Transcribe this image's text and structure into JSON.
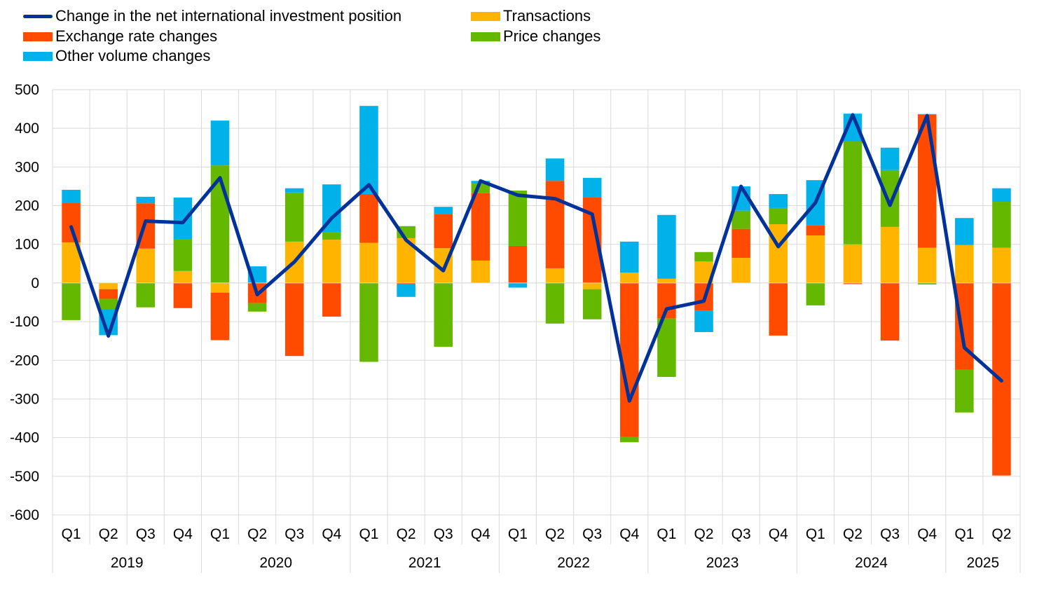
{
  "chart_data": {
    "type": "bar",
    "subtype": "stacked-bar-with-line",
    "title": "",
    "xlabel": "",
    "ylabel": "",
    "ylim": [
      -600,
      500
    ],
    "yticks": [
      500,
      400,
      300,
      200,
      100,
      0,
      -100,
      -200,
      -300,
      -400,
      -500,
      -600
    ],
    "grid": true,
    "legend_position": "top-left",
    "categories": [
      "Q1",
      "Q2",
      "Q3",
      "Q4",
      "Q1",
      "Q2",
      "Q3",
      "Q4",
      "Q1",
      "Q2",
      "Q3",
      "Q4",
      "Q1",
      "Q2",
      "Q3",
      "Q4",
      "Q1",
      "Q2",
      "Q3",
      "Q4",
      "Q1",
      "Q2",
      "Q3",
      "Q4",
      "Q1",
      "Q2"
    ],
    "years": [
      {
        "label": "2019",
        "span": 4
      },
      {
        "label": "2020",
        "span": 4
      },
      {
        "label": "2021",
        "span": 4
      },
      {
        "label": "2022",
        "span": 4
      },
      {
        "label": "2023",
        "span": 4
      },
      {
        "label": "2024",
        "span": 4
      },
      {
        "label": "2025",
        "span": 2
      }
    ],
    "series": [
      {
        "name": "Transactions",
        "kind": "bar",
        "color": "#FFB400",
        "values": [
          105,
          -16,
          89,
          31,
          -25,
          0,
          107,
          112,
          104,
          116,
          90,
          58,
          0,
          38,
          -16,
          27,
          11,
          56,
          65,
          152,
          123,
          100,
          145,
          91,
          98,
          91
        ]
      },
      {
        "name": "Exchange rate changes",
        "kind": "bar",
        "color": "#FF4B00",
        "values": [
          103,
          -25,
          117,
          -65,
          -123,
          -52,
          -189,
          -87,
          126,
          -3,
          89,
          174,
          96,
          226,
          221,
          -398,
          -92,
          -72,
          75,
          -136,
          26,
          -3,
          -149,
          344,
          -224,
          -498
        ]
      },
      {
        "name": "Price changes",
        "kind": "bar",
        "color": "#65B800",
        "values": [
          -96,
          -27,
          -63,
          83,
          304,
          -22,
          127,
          20,
          -204,
          31,
          -165,
          25,
          143,
          -105,
          -78,
          -14,
          -151,
          24,
          47,
          42,
          -58,
          266,
          147,
          -4,
          -111,
          119
        ]
      },
      {
        "name": "Other volume changes",
        "kind": "bar",
        "color": "#00B1EA",
        "values": [
          33,
          -67,
          17,
          107,
          116,
          43,
          11,
          123,
          228,
          -33,
          18,
          7,
          -12,
          58,
          51,
          80,
          165,
          -55,
          63,
          36,
          117,
          72,
          58,
          2,
          70,
          35
        ]
      },
      {
        "name": "Change in the net international investment position",
        "kind": "line",
        "color": "#003299",
        "values": [
          145,
          -137,
          160,
          156,
          272,
          -30,
          55,
          168,
          254,
          111,
          32,
          264,
          227,
          218,
          178,
          -305,
          -67,
          -47,
          250,
          94,
          208,
          435,
          201,
          433,
          -167,
          -253
        ]
      }
    ],
    "legend": [
      {
        "label": "Change in the net international investment position",
        "type": "line",
        "color": "#003299"
      },
      {
        "label": "Transactions",
        "type": "box",
        "color": "#FFB400"
      },
      {
        "label": "Exchange rate changes",
        "type": "box",
        "color": "#FF4B00"
      },
      {
        "label": "Price changes",
        "type": "box",
        "color": "#65B800"
      },
      {
        "label": "Other volume changes",
        "type": "box",
        "color": "#00B1EA"
      }
    ]
  }
}
